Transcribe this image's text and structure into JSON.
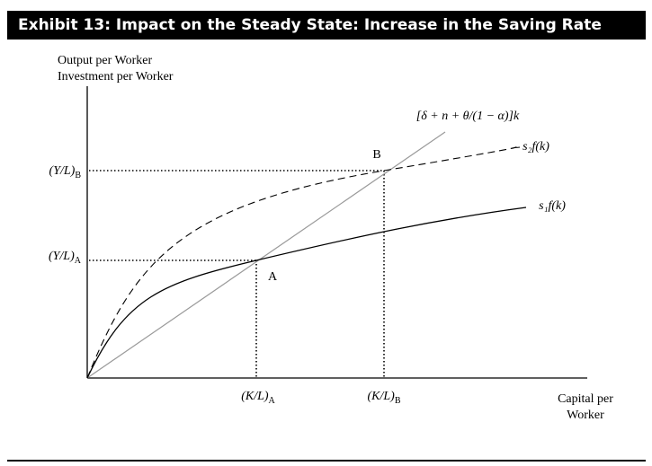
{
  "exhibit": {
    "title": "Exhibit 13: Impact on the Steady State: Increase in the Saving Rate"
  },
  "chart_data": {
    "type": "line",
    "ylabel_line1": "Output per Worker",
    "ylabel_line2": "Investment per Worker",
    "xlabel_line1": "Capital per",
    "xlabel_line2": "Worker",
    "x_ticks": [
      {
        "main": "(K/L)",
        "sub": "A"
      },
      {
        "main": "(K/L)",
        "sub": "B"
      }
    ],
    "y_ticks": [
      {
        "main": "(Y/L)",
        "sub": "A"
      },
      {
        "main": "(Y/L)",
        "sub": "B"
      }
    ],
    "series": [
      {
        "name": "[δ + n + θ/(1 − α)]k",
        "style": "solid",
        "color": "#999999"
      },
      {
        "name": "s₂f(k)",
        "style": "dashed",
        "color": "#000000"
      },
      {
        "name": "s₁f(k)",
        "style": "solid",
        "color": "#000000"
      }
    ],
    "points": [
      {
        "label": "A"
      },
      {
        "label": "B"
      }
    ]
  }
}
